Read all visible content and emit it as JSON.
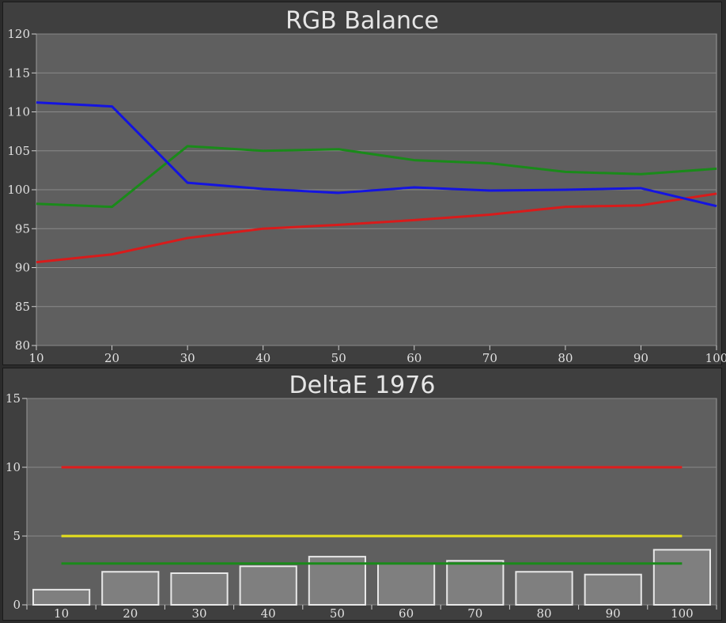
{
  "charts": [
    {
      "title": "RGB Balance",
      "chart_data": {
        "type": "line",
        "x": [
          10,
          20,
          30,
          40,
          50,
          60,
          70,
          80,
          90,
          100
        ],
        "xlim": [
          10,
          100
        ],
        "ylim": [
          80,
          120
        ],
        "yticks": [
          80,
          85,
          90,
          95,
          100,
          105,
          110,
          115,
          120
        ],
        "grid": true,
        "series": [
          {
            "color": "#d81b1b",
            "values": [
              90.7,
              91.7,
              93.8,
              95.0,
              95.5,
              96.1,
              96.8,
              97.8,
              98.0,
              99.5
            ]
          },
          {
            "color": "#1a8a1a",
            "values": [
              98.2,
              97.8,
              105.6,
              105.0,
              105.2,
              103.8,
              103.4,
              102.3,
              102.0,
              102.7
            ]
          },
          {
            "color": "#1414e0",
            "values": [
              111.2,
              110.7,
              100.9,
              100.1,
              99.6,
              100.3,
              99.9,
              100.0,
              100.2,
              97.9
            ]
          }
        ]
      }
    },
    {
      "title": "DeltaE 1976",
      "chart_data": {
        "type": "bar",
        "categories": [
          "10",
          "20",
          "30",
          "40",
          "50",
          "60",
          "70",
          "80",
          "90",
          "100"
        ],
        "values": [
          1.1,
          2.4,
          2.3,
          2.8,
          3.5,
          3.0,
          3.2,
          2.4,
          2.2,
          4.0
        ],
        "ylim": [
          0,
          15
        ],
        "yticks": [
          0,
          5,
          10,
          15
        ],
        "grid": true,
        "bar_color": "#7f7f7f",
        "thresholds": [
          {
            "value": 10,
            "color": "#e01c1c"
          },
          {
            "value": 5,
            "color": "#e6e01c"
          },
          {
            "value": 3,
            "color": "#1a8a1a"
          }
        ]
      }
    }
  ]
}
